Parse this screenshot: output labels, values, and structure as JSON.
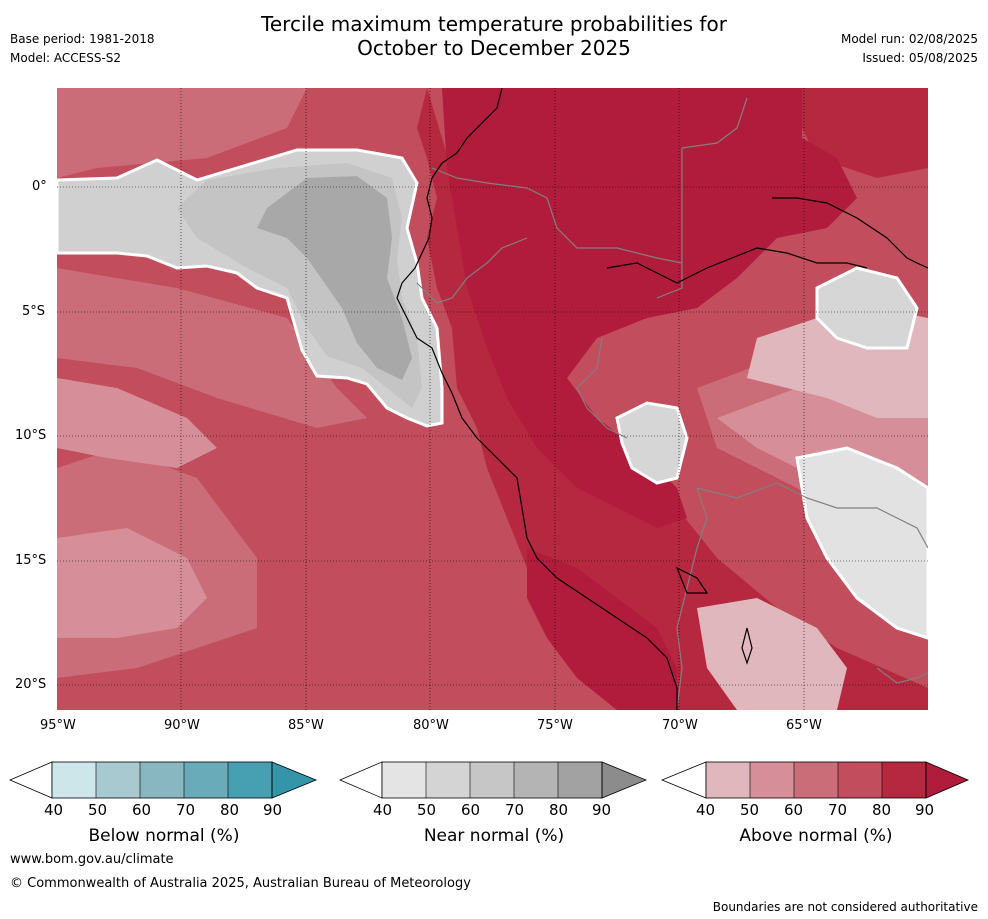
{
  "header": {
    "base_period": "Base period: 1981-2018",
    "model": "Model: ACCESS-S2",
    "title_line1": "Tercile maximum temperature probabilities for",
    "title_line2": "October to December 2025",
    "model_run": "Model run: 02/08/2025",
    "issued": "Issued: 05/08/2025"
  },
  "map": {
    "lon_labels": [
      "95°W",
      "90°W",
      "85°W",
      "80°W",
      "75°W",
      "70°W",
      "65°W"
    ],
    "lat_labels": [
      "0°",
      "5°S",
      "10°S",
      "15°S",
      "20°S"
    ],
    "colors": {
      "above": [
        "#e0b7bd",
        "#d68f98",
        "#cb6c79",
        "#c24d5c",
        "#b5283f",
        "#b21c3c"
      ],
      "near": [
        "#e4e4e4",
        "#d4d4d4",
        "#c6c6c6",
        "#b4b4b4",
        "#a2a2a2",
        "#8c8c8c"
      ],
      "below": [
        "#cde6ea",
        "#a8c9cf",
        "#88b7c2",
        "#69abb8",
        "#47a0b2",
        "#3595a8"
      ],
      "coast": "#000000",
      "border": "#808080"
    }
  },
  "colorbars": [
    {
      "label": "Below normal (%)",
      "ticks": [
        "40",
        "50",
        "60",
        "70",
        "80",
        "90"
      ]
    },
    {
      "label": "Near normal (%)",
      "ticks": [
        "40",
        "50",
        "60",
        "70",
        "80",
        "90"
      ]
    },
    {
      "label": "Above normal (%)",
      "ticks": [
        "40",
        "50",
        "60",
        "70",
        "80",
        "90"
      ]
    }
  ],
  "footer": {
    "url": "www.bom.gov.au/climate",
    "copyright": "© Commonwealth of Australia 2025, Australian Bureau of Meteorology",
    "disclaimer": "Boundaries are not considered authoritative"
  }
}
